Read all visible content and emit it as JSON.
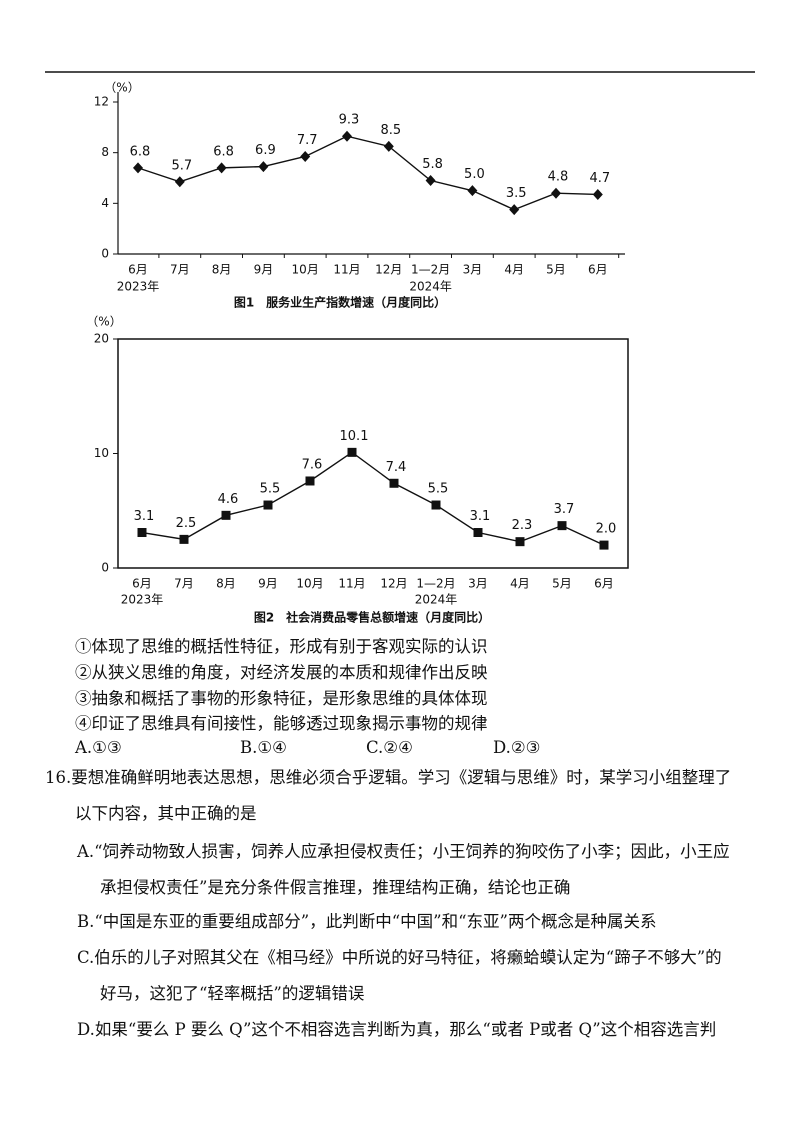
{
  "chart_data": [
    {
      "type": "line",
      "title": "图1　服务业生产指数增速（月度同比）",
      "y_label": "（%）",
      "categories": [
        "6月",
        "7月",
        "8月",
        "9月",
        "10月",
        "11月",
        "12月",
        "1—2月",
        "3月",
        "4月",
        "5月",
        "6月"
      ],
      "year_labels": [
        "2023年",
        null,
        null,
        null,
        null,
        null,
        null,
        "2024年",
        null,
        null,
        null,
        null
      ],
      "values": [
        6.8,
        5.7,
        6.8,
        6.9,
        7.7,
        9.3,
        8.5,
        5.8,
        5.0,
        3.5,
        4.8,
        4.7
      ],
      "value_labels": [
        "6.8",
        "5.7",
        "6.8",
        "6.9",
        "7.7",
        "9.3",
        "8.5",
        "5.8",
        "5.0",
        "3.5",
        "4.8",
        "4.7"
      ],
      "ylim": [
        0,
        12
      ],
      "yticks": [
        0,
        4,
        8,
        12
      ],
      "color": "#111",
      "marker": "diamond",
      "frame": false
    },
    {
      "type": "line",
      "title": "图2　社会消费品零售总额增速（月度同比）",
      "y_label": "（%）",
      "categories": [
        "6月",
        "7月",
        "8月",
        "9月",
        "10月",
        "11月",
        "12月",
        "1—2月",
        "3月",
        "4月",
        "5月",
        "6月"
      ],
      "year_labels": [
        "2023年",
        null,
        null,
        null,
        null,
        null,
        null,
        "2024年",
        null,
        null,
        null,
        null
      ],
      "values": [
        3.1,
        2.5,
        4.6,
        5.5,
        7.6,
        10.1,
        7.4,
        5.5,
        3.1,
        2.3,
        3.7,
        2.0
      ],
      "value_labels": [
        "3.1",
        "2.5",
        "4.6",
        "5.5",
        "7.6",
        "10.1",
        "7.4",
        "5.5",
        "3.1",
        "2.3",
        "3.7",
        "2.0"
      ],
      "ylim": [
        0,
        20
      ],
      "yticks": [
        0,
        10,
        20
      ],
      "color": "#111",
      "marker": "square",
      "frame": true
    }
  ],
  "document": {
    "statements": [
      "①体现了思维的概括性特征，形成有别于客观实际的认识",
      "②从狭义思维的角度，对经济发展的本质和规律作出反映",
      "③抽象和概括了事物的形象特征，是形象思维的具体体现",
      "④印证了思维具有间接性，能够透过现象揭示事物的规律"
    ],
    "choices": [
      "A.①③",
      "B.①④",
      "C.②④",
      "D.②③"
    ],
    "question": {
      "lines": [
        "16.要想准确鲜明地表达思想，思维必须合乎逻辑。学习《逻辑与思维》时，某学习小组整理了",
        "以下内容，其中正确的是"
      ],
      "options": [
        {
          "lines": [
            "A.“饲养动物致人损害，饲养人应承担侵权责任；小王饲养的狗咬伤了小李；因此，小王应",
            "承担侵权责任”是充分条件假言推理，推理结构正确，结论也正确"
          ]
        },
        {
          "lines": [
            "B.“中国是东亚的重要组成部分”，此判断中“中国”和“东亚”两个概念是种属关系"
          ]
        },
        {
          "lines": [
            "C.伯乐的儿子对照其父在《相马经》中所说的好马特征，将癞蛤蟆认定为“蹄子不够大”的",
            "好马，这犯了“轻率概括”的逻辑错误"
          ]
        },
        {
          "lines": [
            "D.如果“要么 P 要么 Q”这个不相容选言判断为真，那么“或者 P或者 Q”这个相容选言判"
          ]
        }
      ]
    }
  }
}
